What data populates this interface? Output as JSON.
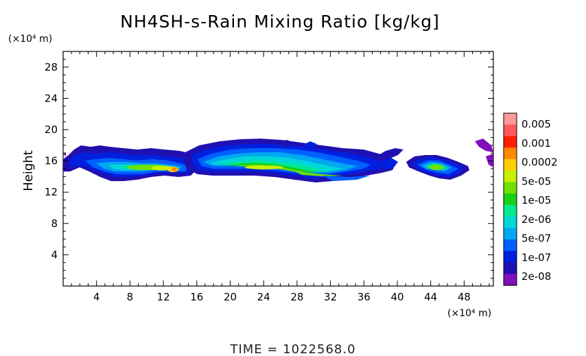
{
  "chart_data": {
    "type": "heatmap",
    "title": "NH4SH-s-Rain Mixing Ratio [kg/kg]",
    "ylabel": "Height",
    "x_unit": "(×10⁴ m)",
    "y_unit": "(×10⁴ m)",
    "xlim": [
      0,
      51.5
    ],
    "ylim": [
      0,
      30
    ],
    "x_ticks": [
      4,
      8,
      12,
      16,
      20,
      24,
      28,
      32,
      36,
      40,
      44,
      48
    ],
    "y_ticks": [
      4,
      8,
      12,
      16,
      20,
      24,
      28
    ],
    "footer": "TIME =  1022568.0",
    "colorbar": {
      "labels": [
        "0.005",
        "0.001",
        "0.0002",
        "5e-05",
        "1e-05",
        "2e-06",
        "5e-07",
        "1e-07",
        "2e-08"
      ],
      "colors": [
        "#ff9a9a",
        "#ff5a5a",
        "#ff2000",
        "#ff8a00",
        "#ffd000",
        "#c8f000",
        "#70e000",
        "#18d018",
        "#00e890",
        "#00d8d8",
        "#00a8f0",
        "#0060ff",
        "#0020e0",
        "#2010b0",
        "#8010b8"
      ]
    },
    "features": [
      {
        "x": [
          0.5,
          15
        ],
        "y_core": 15.3,
        "peak_x": 13,
        "peak_level": "0.0002"
      },
      {
        "x": [
          17,
          41
        ],
        "y_core": 15.8,
        "peak_level": "5e-05"
      },
      {
        "x": [
          42,
          48.5
        ],
        "y_core": 15.2,
        "peak_level": "5e-05"
      }
    ]
  }
}
